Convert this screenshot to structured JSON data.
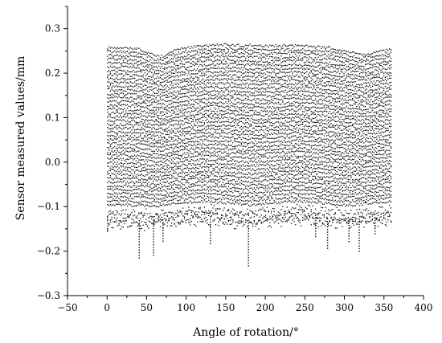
{
  "chart_data": {
    "type": "scatter",
    "title": "",
    "xlabel": "Angle of rotation/°",
    "ylabel": "Sensor measured values/mm",
    "xlim": [
      -50,
      400
    ],
    "ylim": [
      -0.3,
      0.35
    ],
    "xticks": [
      -50,
      0,
      50,
      100,
      150,
      200,
      250,
      300,
      350,
      400
    ],
    "xtick_labels": [
      "−50",
      "0",
      "50",
      "100",
      "150",
      "200",
      "250",
      "300",
      "350",
      "400"
    ],
    "yticks": [
      -0.3,
      -0.2,
      -0.1,
      0.0,
      0.1,
      0.2,
      0.3
    ],
    "ytick_labels": [
      "−0.3",
      "−0.2",
      "−0.1",
      "0.0",
      "0.1",
      "0.2",
      "0.3"
    ],
    "grid": false,
    "legend": "none",
    "marker_color": "#000000",
    "series": [
      {
        "x_range": [
          0,
          360
        ],
        "upper_envelope": [
          [
            0,
            0.258
          ],
          [
            20,
            0.258
          ],
          [
            40,
            0.255
          ],
          [
            60,
            0.24
          ],
          [
            70,
            0.238
          ],
          [
            80,
            0.25
          ],
          [
            100,
            0.258
          ],
          [
            120,
            0.262
          ],
          [
            150,
            0.265
          ],
          [
            200,
            0.262
          ],
          [
            240,
            0.263
          ],
          [
            280,
            0.258
          ],
          [
            300,
            0.252
          ],
          [
            320,
            0.242
          ],
          [
            340,
            0.248
          ],
          [
            360,
            0.255
          ]
        ],
        "lower_envelope": [
          [
            0,
            -0.13
          ],
          [
            60,
            -0.13
          ],
          [
            120,
            -0.12
          ],
          [
            180,
            -0.13
          ],
          [
            240,
            -0.12
          ],
          [
            300,
            -0.13
          ],
          [
            360,
            -0.12
          ]
        ],
        "outliers": [
          [
            0,
            -0.16
          ],
          [
            40,
            -0.22
          ],
          [
            58,
            -0.21
          ],
          [
            70,
            -0.18
          ],
          [
            130,
            -0.185
          ],
          [
            178,
            -0.235
          ],
          [
            263,
            -0.17
          ],
          [
            278,
            -0.195
          ],
          [
            305,
            -0.18
          ],
          [
            318,
            -0.2
          ],
          [
            338,
            -0.165
          ]
        ]
      }
    ]
  }
}
